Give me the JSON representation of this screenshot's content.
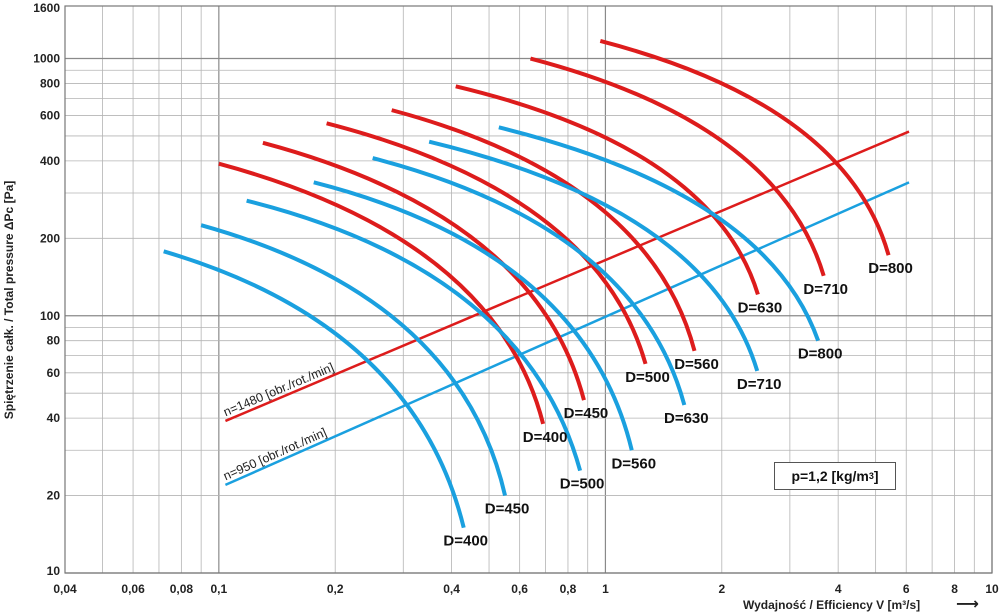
{
  "chart_data": {
    "type": "line",
    "xscale": "log",
    "yscale": "log",
    "xlim": [
      0.04,
      10
    ],
    "ylim": [
      10,
      1600
    ],
    "grid": true,
    "ylabel": "Spiętrzenie całk. / Total pressure   ΔPc [Pa]",
    "xlabel": "Wydajność / Efficiency   V [m³/s]",
    "xlabel_arrow": "⟶",
    "x_ticks": [
      {
        "v": 0.04,
        "label": "0,04"
      },
      {
        "v": 0.06,
        "label": "0,06"
      },
      {
        "v": 0.08,
        "label": "0,08"
      },
      {
        "v": 0.1,
        "label": "0,1"
      },
      {
        "v": 0.2,
        "label": "0,2"
      },
      {
        "v": 0.4,
        "label": "0,4"
      },
      {
        "v": 0.6,
        "label": "0,6"
      },
      {
        "v": 0.8,
        "label": "0,8"
      },
      {
        "v": 1,
        "label": "1"
      },
      {
        "v": 2,
        "label": "2"
      },
      {
        "v": 4,
        "label": "4"
      },
      {
        "v": 6,
        "label": "6"
      },
      {
        "v": 8,
        "label": "8"
      },
      {
        "v": 10,
        "label": "10"
      }
    ],
    "y_ticks": [
      {
        "v": 10,
        "label": "10"
      },
      {
        "v": 20,
        "label": "20"
      },
      {
        "v": 40,
        "label": "40"
      },
      {
        "v": 60,
        "label": "60"
      },
      {
        "v": 80,
        "label": "80"
      },
      {
        "v": 100,
        "label": "100"
      },
      {
        "v": 200,
        "label": "200"
      },
      {
        "v": 400,
        "label": "400"
      },
      {
        "v": 600,
        "label": "600"
      },
      {
        "v": 800,
        "label": "800"
      },
      {
        "v": 1000,
        "label": "1000"
      },
      {
        "v": 1600,
        "label": "1600"
      }
    ],
    "series": [
      {
        "speed": "1480",
        "color": "#dd1c1c",
        "label": "D=400",
        "start": [
          0.1,
          390
        ],
        "end": [
          0.69,
          38
        ],
        "ctrl": [
          0.52,
          200
        ]
      },
      {
        "speed": "1480",
        "color": "#dd1c1c",
        "label": "D=450",
        "start": [
          0.13,
          470
        ],
        "end": [
          0.88,
          47
        ],
        "ctrl": [
          0.66,
          245
        ]
      },
      {
        "speed": "1480",
        "color": "#dd1c1c",
        "label": "D=500",
        "start": [
          0.19,
          560
        ],
        "end": [
          1.27,
          65
        ],
        "ctrl": [
          0.95,
          300
        ]
      },
      {
        "speed": "1480",
        "color": "#dd1c1c",
        "label": "D=560",
        "start": [
          0.28,
          630
        ],
        "end": [
          1.7,
          73
        ],
        "ctrl": [
          1.3,
          340
        ]
      },
      {
        "speed": "1480",
        "color": "#dd1c1c",
        "label": "D=630",
        "start": [
          0.41,
          780
        ],
        "end": [
          2.48,
          121
        ],
        "ctrl": [
          1.9,
          450
        ]
      },
      {
        "speed": "1480",
        "color": "#dd1c1c",
        "label": "D=710",
        "start": [
          0.64,
          1000
        ],
        "end": [
          3.67,
          143
        ],
        "ctrl": [
          2.8,
          560
        ]
      },
      {
        "speed": "1480",
        "color": "#dd1c1c",
        "label": "D=800",
        "start": [
          0.97,
          1170
        ],
        "end": [
          5.4,
          172
        ],
        "ctrl": [
          4.2,
          660
        ]
      },
      {
        "speed": "950",
        "color": "#1aa0df",
        "label": "D=400",
        "start": [
          0.072,
          178
        ],
        "end": [
          0.43,
          15
        ],
        "ctrl": [
          0.32,
          92
        ]
      },
      {
        "speed": "950",
        "color": "#1aa0df",
        "label": "D=450",
        "start": [
          0.09,
          225
        ],
        "end": [
          0.55,
          20
        ],
        "ctrl": [
          0.42,
          118
        ]
      },
      {
        "speed": "950",
        "color": "#1aa0df",
        "label": "D=500",
        "start": [
          0.118,
          280
        ],
        "end": [
          0.86,
          25
        ],
        "ctrl": [
          0.62,
          150
        ]
      },
      {
        "speed": "950",
        "color": "#1aa0df",
        "label": "D=560",
        "start": [
          0.176,
          330
        ],
        "end": [
          1.17,
          30
        ],
        "ctrl": [
          0.88,
          178
        ]
      },
      {
        "speed": "950",
        "color": "#1aa0df",
        "label": "D=630",
        "start": [
          0.25,
          410
        ],
        "end": [
          1.6,
          45
        ],
        "ctrl": [
          1.2,
          222
        ]
      },
      {
        "speed": "950",
        "color": "#1aa0df",
        "label": "D=710",
        "start": [
          0.35,
          475
        ],
        "end": [
          2.47,
          61
        ],
        "ctrl": [
          1.85,
          260
        ]
      },
      {
        "speed": "950",
        "color": "#1aa0df",
        "label": "D=800",
        "start": [
          0.53,
          540
        ],
        "end": [
          3.55,
          80
        ],
        "ctrl": [
          2.6,
          300
        ]
      }
    ],
    "rpm_lines": [
      {
        "label": "n=1480 [obr./rot./min]",
        "color": "#dd1c1c",
        "start": [
          0.104,
          39
        ],
        "end": [
          6.1,
          520
        ]
      },
      {
        "label": "n=950 [obr./rot./min]",
        "color": "#1aa0df",
        "start": [
          0.104,
          22
        ],
        "end": [
          6.1,
          330
        ]
      }
    ],
    "density_note": {
      "text": "p=1,2 [kg/m",
      "sup": "3",
      "close": "]"
    }
  }
}
